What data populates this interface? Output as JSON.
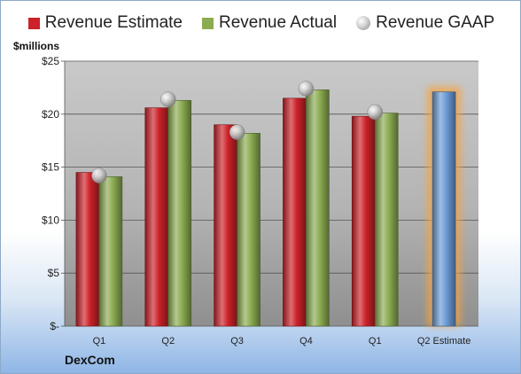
{
  "units_label": "$millions",
  "company": "DexCom",
  "legend": [
    {
      "label": "Revenue Estimate",
      "marker": "square",
      "color": "#cc2229"
    },
    {
      "label": "Revenue Actual",
      "marker": "square",
      "color": "#8cac52"
    },
    {
      "label": "Revenue GAAP",
      "marker": "sphere",
      "color": "#b5b5b5"
    }
  ],
  "chart_data": {
    "type": "bar",
    "categories": [
      "Q1",
      "Q2",
      "Q3",
      "Q4",
      "Q1",
      "Q2 Estimate"
    ],
    "series": [
      {
        "name": "Revenue Estimate",
        "type": "bar",
        "color": "#cc2229",
        "values": [
          14.5,
          20.6,
          19.0,
          21.5,
          19.8,
          null
        ]
      },
      {
        "name": "Revenue Actual",
        "type": "bar",
        "color": "#8cac52",
        "values": [
          14.1,
          21.3,
          18.2,
          22.3,
          20.1,
          null
        ]
      },
      {
        "name": "Revenue GAAP",
        "type": "scatter",
        "marker": "sphere",
        "values": [
          14.2,
          21.4,
          18.3,
          22.4,
          20.2,
          null
        ]
      },
      {
        "name": "",
        "type": "bar",
        "color": "#6b9bd6",
        "values": [
          null,
          null,
          null,
          null,
          null,
          22.1
        ]
      }
    ],
    "ylim": [
      0,
      25
    ],
    "yticks": [
      0,
      5,
      10,
      15,
      20,
      25
    ],
    "ytick_labels": [
      "$-",
      "$5",
      "$10",
      "$15",
      "$20",
      "$25"
    ],
    "grid": true,
    "legend_position": "top"
  }
}
